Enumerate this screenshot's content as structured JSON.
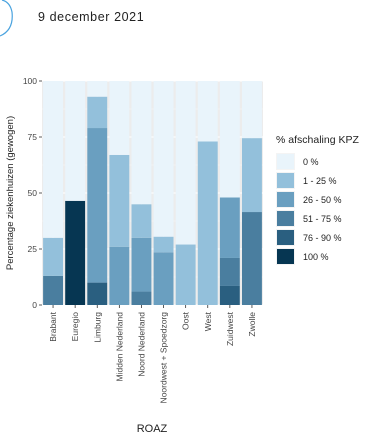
{
  "date_label": "9 december 2021",
  "legend": {
    "title": "% afschaling KPZ",
    "items": [
      {
        "label": "0 %",
        "color": "#e9f4fb"
      },
      {
        "label": "1 - 25 %",
        "color": "#93c0db"
      },
      {
        "label": "26 - 50 %",
        "color": "#6a9fc0"
      },
      {
        "label": "51 - 75 %",
        "color": "#4a7e9f"
      },
      {
        "label": "76 - 90 %",
        "color": "#2a5f80"
      },
      {
        "label": "100 %",
        "color": "#063652"
      }
    ]
  },
  "chart_data": {
    "type": "bar",
    "stacked": true,
    "xlabel": "ROAZ",
    "ylabel": "Percentage ziekenhuizen (gewogen)",
    "ylim": [
      0,
      100
    ],
    "yticks": [
      0,
      25,
      50,
      75,
      100
    ],
    "categories": [
      "Brabant",
      "Euregio",
      "Limburg",
      "Midden Nederland",
      "Noord Nederland",
      "Noordwest + Spoedzorg",
      "Oost",
      "West",
      "Zuidwest",
      "Zwolle"
    ],
    "series": [
      {
        "name": "100 %",
        "values": [
          0,
          46.5,
          0,
          0,
          0,
          0,
          0,
          0,
          0,
          0
        ]
      },
      {
        "name": "76 - 90 %",
        "values": [
          0,
          0,
          10,
          0,
          0,
          0,
          0,
          0,
          8.5,
          0
        ]
      },
      {
        "name": "51 - 75 %",
        "values": [
          13,
          0,
          0,
          0,
          6,
          0,
          0,
          0,
          12.5,
          41.5
        ]
      },
      {
        "name": "26 - 50 %",
        "values": [
          0,
          0,
          69,
          26,
          24,
          23.5,
          0,
          0,
          27,
          0
        ]
      },
      {
        "name": "1 - 25 %",
        "values": [
          17,
          0,
          14,
          41,
          15,
          7,
          27,
          73,
          0,
          33
        ]
      },
      {
        "name": "0 %",
        "values": [
          70,
          53.5,
          7,
          33,
          55,
          69.5,
          73,
          27,
          52,
          25.5
        ]
      }
    ]
  }
}
